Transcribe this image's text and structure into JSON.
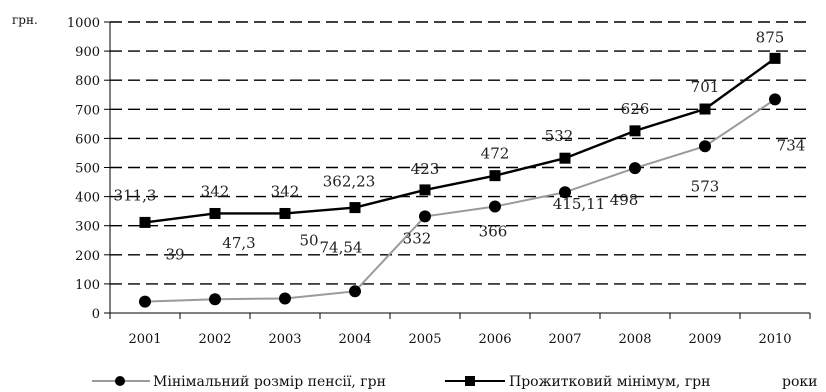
{
  "chart_data": {
    "type": "line",
    "title": "",
    "ylabel": "грн.",
    "xlabel": "роки",
    "ylim": [
      0,
      1000
    ],
    "y_ticks": [
      "0",
      "100",
      "200",
      "300",
      "400",
      "500",
      "600",
      "700",
      "800",
      "900",
      "1000"
    ],
    "categories": [
      "2001",
      "2002",
      "2003",
      "2004",
      "2005",
      "2006",
      "2007",
      "2008",
      "2009",
      "2010"
    ],
    "grid": "horizontal dashed",
    "legend_position": "bottom",
    "series": [
      {
        "name": "Мінімальний розмір пенсії, грн",
        "marker": "circle",
        "color": "#9a9a9a",
        "values": [
          39,
          47.3,
          50,
          74.54,
          332,
          366,
          415.11,
          498,
          573,
          734
        ],
        "labels": [
          "39",
          "47,3",
          "50",
          "74,54",
          "332",
          "366",
          "415,11",
          "498",
          "573",
          "734"
        ]
      },
      {
        "name": "Прожитковий мінімум, грн",
        "marker": "square",
        "color": "#000000",
        "values": [
          311.3,
          342,
          342,
          362.23,
          423,
          472,
          532,
          626,
          701,
          875
        ],
        "labels": [
          "311,3",
          "342",
          "342",
          "362,23",
          "423",
          "472",
          "532",
          "626",
          "701",
          "875"
        ]
      }
    ]
  }
}
